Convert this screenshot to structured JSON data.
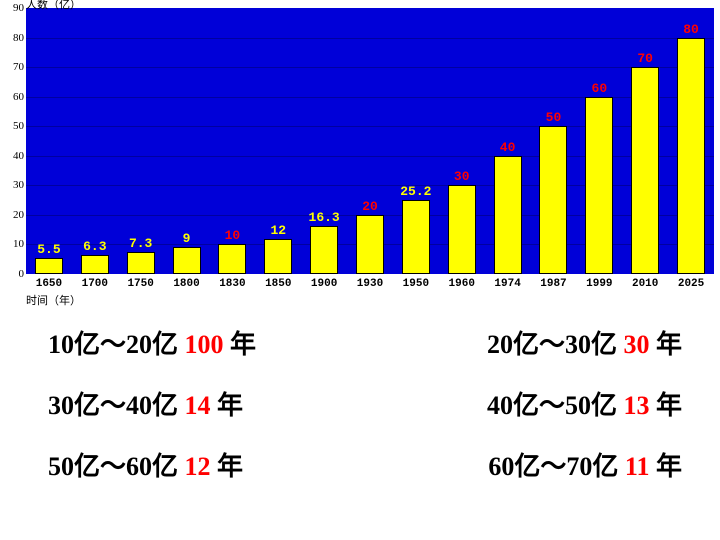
{
  "chart": {
    "type": "bar",
    "y_axis_label": "人数（亿）",
    "x_axis_label": "时间（年）",
    "ylim": [
      0,
      90
    ],
    "ytick_step": 10,
    "background_color": "#0000d8",
    "grid_color": "#0000a0",
    "bar_color": "#ffff00",
    "bar_border_color": "#000000",
    "label_color_red": "#ff0000",
    "label_color_yellow": "#ffff00",
    "categories": [
      "1650",
      "1700",
      "1750",
      "1800",
      "1830",
      "1850",
      "1900",
      "1930",
      "1950",
      "1960",
      "1974",
      "1987",
      "1999",
      "2010",
      "2025"
    ],
    "values": [
      5.5,
      6.3,
      7.3,
      9,
      10,
      12,
      16.3,
      20,
      25.2,
      30,
      40,
      50,
      60,
      70,
      80
    ],
    "value_labels": [
      "5.5",
      "6.3",
      "7.3",
      "9",
      "10",
      "12",
      "16.3",
      "20",
      "25.2",
      "30",
      "40",
      "50",
      "60",
      "70",
      "80"
    ],
    "label_is_red": [
      false,
      false,
      false,
      false,
      true,
      false,
      false,
      true,
      false,
      true,
      true,
      true,
      true,
      true,
      true
    ]
  },
  "text_rows": [
    [
      {
        "parts": [
          {
            "t": "10亿～20亿",
            "c": "black"
          },
          {
            "t": " 100 ",
            "c": "red"
          },
          {
            "t": "年",
            "c": "black"
          }
        ]
      },
      {
        "parts": [
          {
            "t": "20亿～30亿",
            "c": "black"
          },
          {
            "t": " 30 ",
            "c": "red"
          },
          {
            "t": "年",
            "c": "black"
          }
        ]
      }
    ],
    [
      {
        "parts": [
          {
            "t": "30亿～40亿",
            "c": "black"
          },
          {
            "t": " 14 ",
            "c": "red"
          },
          {
            "t": " 年",
            "c": "black"
          }
        ]
      },
      {
        "parts": [
          {
            "t": "40亿～50亿",
            "c": "black"
          },
          {
            "t": " 13 ",
            "c": "red"
          },
          {
            "t": " 年",
            "c": "black"
          }
        ]
      }
    ],
    [
      {
        "parts": [
          {
            "t": "50亿～60亿",
            "c": "black"
          },
          {
            "t": " 12 ",
            "c": "red"
          },
          {
            "t": "年",
            "c": "black"
          }
        ]
      },
      {
        "parts": [
          {
            "t": "60亿～70亿",
            "c": "black"
          },
          {
            "t": " 11 ",
            "c": "red"
          },
          {
            "t": " 年",
            "c": "black"
          }
        ]
      }
    ]
  ]
}
